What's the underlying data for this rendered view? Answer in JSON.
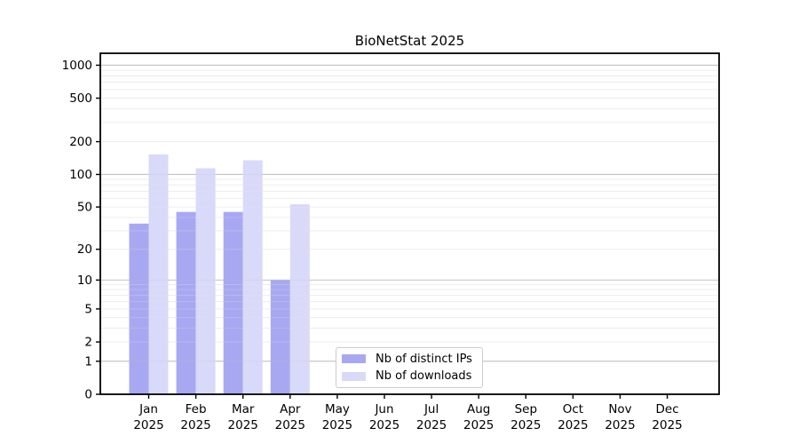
{
  "title": "BioNetStat 2025",
  "chart_data": {
    "type": "bar",
    "title": "BioNetStat 2025",
    "categories": [
      "Jan 2025",
      "Feb 2025",
      "Mar 2025",
      "Apr 2025",
      "May 2025",
      "Jun 2025",
      "Jul 2025",
      "Aug 2025",
      "Sep 2025",
      "Oct 2025",
      "Nov 2025",
      "Dec 2025"
    ],
    "series": [
      {
        "name": "Nb of distinct IPs",
        "color": "#a8a8f2",
        "values": [
          35,
          45,
          45,
          10,
          0,
          0,
          0,
          0,
          0,
          0,
          0,
          0
        ]
      },
      {
        "name": "Nb of downloads",
        "color": "#d9d9f9",
        "values": [
          153,
          114,
          135,
          53,
          0,
          0,
          0,
          0,
          0,
          0,
          0,
          0
        ]
      }
    ],
    "yscale": "log1p",
    "yticks": [
      0,
      1,
      2,
      5,
      10,
      20,
      50,
      100,
      200,
      500,
      1000
    ],
    "ylim": [
      0,
      1285
    ],
    "grid": "both",
    "legend_position": "lower-center"
  },
  "style": {
    "background": "#ffffff",
    "axis_color": "#000000",
    "major_grid_color": "#c3c3c3",
    "minor_grid_color": "#ededed",
    "legend_border_color": "#cccccc"
  }
}
